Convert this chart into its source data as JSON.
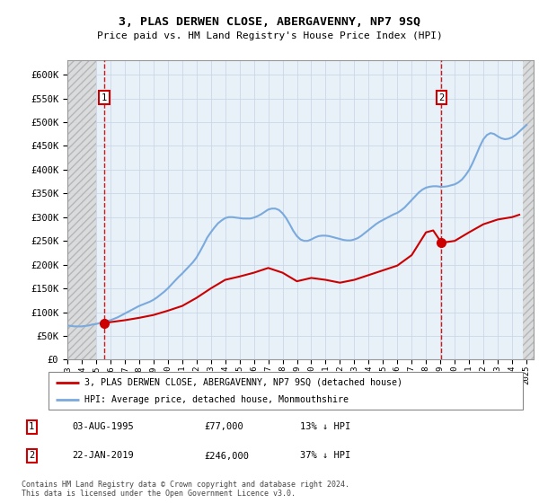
{
  "title": "3, PLAS DERWEN CLOSE, ABERGAVENNY, NP7 9SQ",
  "subtitle": "Price paid vs. HM Land Registry's House Price Index (HPI)",
  "ylabel_ticks": [
    0,
    50000,
    100000,
    150000,
    200000,
    250000,
    300000,
    350000,
    400000,
    450000,
    500000,
    550000,
    600000
  ],
  "ylabel_labels": [
    "£0",
    "£50K",
    "£100K",
    "£150K",
    "£200K",
    "£250K",
    "£300K",
    "£350K",
    "£400K",
    "£450K",
    "£500K",
    "£550K",
    "£600K"
  ],
  "xlim": [
    1993.0,
    2025.5
  ],
  "ylim": [
    0,
    630000
  ],
  "hpi_color": "#7aaadd",
  "price_color": "#cc0000",
  "marker_color": "#cc0000",
  "hpi_years": [
    1993.0,
    1993.25,
    1993.5,
    1993.75,
    1994.0,
    1994.25,
    1994.5,
    1994.75,
    1995.0,
    1995.25,
    1995.5,
    1995.75,
    1996.0,
    1996.25,
    1996.5,
    1996.75,
    1997.0,
    1997.25,
    1997.5,
    1997.75,
    1998.0,
    1998.25,
    1998.5,
    1998.75,
    1999.0,
    1999.25,
    1999.5,
    1999.75,
    2000.0,
    2000.25,
    2000.5,
    2000.75,
    2001.0,
    2001.25,
    2001.5,
    2001.75,
    2002.0,
    2002.25,
    2002.5,
    2002.75,
    2003.0,
    2003.25,
    2003.5,
    2003.75,
    2004.0,
    2004.25,
    2004.5,
    2004.75,
    2005.0,
    2005.25,
    2005.5,
    2005.75,
    2006.0,
    2006.25,
    2006.5,
    2006.75,
    2007.0,
    2007.25,
    2007.5,
    2007.75,
    2008.0,
    2008.25,
    2008.5,
    2008.75,
    2009.0,
    2009.25,
    2009.5,
    2009.75,
    2010.0,
    2010.25,
    2010.5,
    2010.75,
    2011.0,
    2011.25,
    2011.5,
    2011.75,
    2012.0,
    2012.25,
    2012.5,
    2012.75,
    2013.0,
    2013.25,
    2013.5,
    2013.75,
    2014.0,
    2014.25,
    2014.5,
    2014.75,
    2015.0,
    2015.25,
    2015.5,
    2015.75,
    2016.0,
    2016.25,
    2016.5,
    2016.75,
    2017.0,
    2017.25,
    2017.5,
    2017.75,
    2018.0,
    2018.25,
    2018.5,
    2018.75,
    2019.0,
    2019.25,
    2019.5,
    2019.75,
    2020.0,
    2020.25,
    2020.5,
    2020.75,
    2021.0,
    2021.25,
    2021.5,
    2021.75,
    2022.0,
    2022.25,
    2022.5,
    2022.75,
    2023.0,
    2023.25,
    2023.5,
    2023.75,
    2024.0,
    2024.25,
    2024.5,
    2024.75,
    2025.0
  ],
  "hpi_values": [
    72000,
    71000,
    70000,
    70000,
    70000,
    71000,
    72000,
    74000,
    75000,
    77000,
    79000,
    81000,
    83000,
    86000,
    89000,
    93000,
    97000,
    101000,
    105000,
    109000,
    113000,
    116000,
    119000,
    122000,
    126000,
    131000,
    137000,
    143000,
    150000,
    158000,
    166000,
    174000,
    181000,
    189000,
    197000,
    205000,
    215000,
    228000,
    242000,
    257000,
    268000,
    278000,
    287000,
    293000,
    298000,
    300000,
    300000,
    299000,
    298000,
    297000,
    297000,
    297000,
    299000,
    302000,
    306000,
    311000,
    316000,
    318000,
    318000,
    315000,
    308000,
    298000,
    285000,
    271000,
    260000,
    253000,
    250000,
    250000,
    253000,
    257000,
    260000,
    261000,
    261000,
    260000,
    258000,
    256000,
    254000,
    252000,
    251000,
    251000,
    253000,
    256000,
    261000,
    267000,
    273000,
    279000,
    285000,
    290000,
    294000,
    298000,
    302000,
    306000,
    309000,
    314000,
    320000,
    328000,
    336000,
    344000,
    352000,
    358000,
    362000,
    364000,
    365000,
    365000,
    364000,
    364000,
    365000,
    367000,
    369000,
    373000,
    379000,
    388000,
    399000,
    414000,
    431000,
    449000,
    464000,
    473000,
    477000,
    475000,
    470000,
    466000,
    464000,
    465000,
    468000,
    473000,
    480000,
    487000,
    494000
  ],
  "price_years": [
    1995.58,
    1996.0,
    1997.0,
    1998.0,
    1999.0,
    2000.0,
    2001.0,
    2002.0,
    2003.0,
    2004.0,
    2005.0,
    2006.0,
    2007.0,
    2008.0,
    2009.0,
    2010.0,
    2011.0,
    2012.0,
    2013.0,
    2014.0,
    2015.0,
    2016.0,
    2017.0,
    2018.0,
    2018.5,
    2019.08,
    2020.0,
    2021.0,
    2022.0,
    2023.0,
    2024.0,
    2024.5
  ],
  "price_values": [
    77000,
    79000,
    83000,
    88000,
    94000,
    103000,
    113000,
    130000,
    150000,
    168000,
    175000,
    183000,
    193000,
    183000,
    165000,
    172000,
    168000,
    162000,
    168000,
    178000,
    188000,
    198000,
    220000,
    268000,
    272000,
    246000,
    250000,
    268000,
    285000,
    295000,
    300000,
    305000
  ],
  "sale1_x": 1995.58,
  "sale1_y": 77000,
  "sale1_label": "1",
  "sale2_x": 2019.08,
  "sale2_y": 246000,
  "sale2_label": "2",
  "legend_line1": "3, PLAS DERWEN CLOSE, ABERGAVENNY, NP7 9SQ (detached house)",
  "legend_line2": "HPI: Average price, detached house, Monmouthshire",
  "table_row1": [
    "1",
    "03-AUG-1995",
    "£77,000",
    "13% ↓ HPI"
  ],
  "table_row2": [
    "2",
    "22-JAN-2019",
    "£246,000",
    "37% ↓ HPI"
  ],
  "footnote": "Contains HM Land Registry data © Crown copyright and database right 2024.\nThis data is licensed under the Open Government Licence v3.0.",
  "grid_color": "#c8d8e8",
  "plot_bg": "#e8f0f8",
  "hatch_bg": "#d8d8d8"
}
